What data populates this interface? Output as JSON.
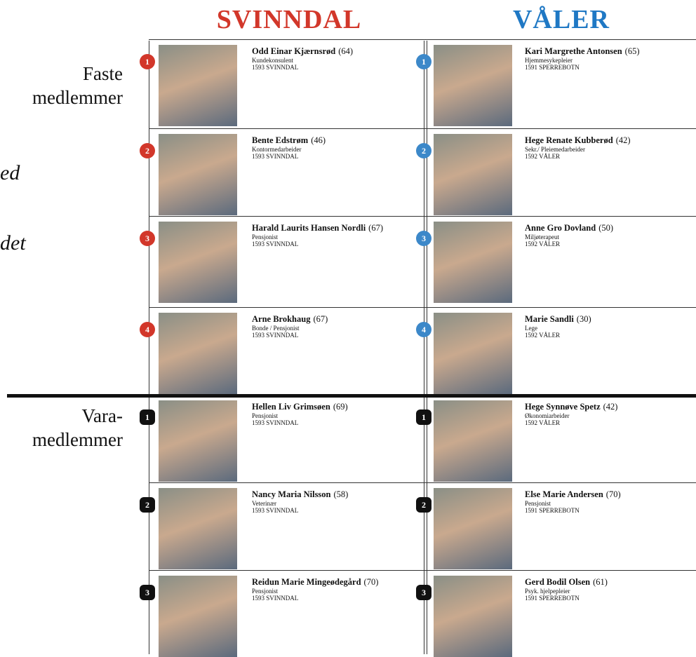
{
  "header": {
    "left": "SVINNDAL",
    "right": "VÅLER"
  },
  "side_labels": {
    "faste": [
      "Faste",
      "medlemmer"
    ],
    "vara": [
      "Vara-",
      "medlemmer"
    ],
    "cut": [
      "ed",
      "det"
    ]
  },
  "sections": [
    {
      "rows": [
        {
          "left": {
            "number": 1,
            "name": "Odd Einar Kjærnsrød",
            "age": "(64)",
            "role": "Kundekonsulent",
            "address": "1593 SVINNDAL"
          },
          "right": {
            "number": 1,
            "name": "Kari Margrethe Antonsen",
            "age": "(65)",
            "role": "Hjemmesykepleier",
            "address": "1591 SPERREBOTN"
          }
        },
        {
          "left": {
            "number": 2,
            "name": "Bente Edstrøm",
            "age": "(46)",
            "role": "Kontormedarbeider",
            "address": "1593 SVINNDAL"
          },
          "right": {
            "number": 2,
            "name": "Hege Renate Kubberød",
            "age": "(42)",
            "role": "Sekr./ Pleiemedarbeider",
            "address": "1592 VÅLER"
          }
        },
        {
          "left": {
            "number": 3,
            "name": "Harald Laurits Hansen Nordli",
            "age": "(67)",
            "role": "Pensjonist",
            "address": "1593 SVINNDAL"
          },
          "right": {
            "number": 3,
            "name": "Anne Gro Dovland",
            "age": "(50)",
            "role": "Miljøterapeut",
            "address": "1592 VÅLER"
          }
        },
        {
          "left": {
            "number": 4,
            "name": "Arne Brokhaug",
            "age": "(67)",
            "role": "Bonde / Pensjonist",
            "address": "1593 SVINNDAL"
          },
          "right": {
            "number": 4,
            "name": "Marie Sandli",
            "age": "(30)",
            "role": "Lege",
            "address": "1592 VÅLER"
          }
        }
      ]
    },
    {
      "rows": [
        {
          "left": {
            "number": 1,
            "name": "Hellen Liv Grimsøen",
            "age": "(69)",
            "role": "Pensjonist",
            "address": "1593 SVINNDAL"
          },
          "right": {
            "number": 1,
            "name": "Hege Synnøve Spetz",
            "age": "(42)",
            "role": "Økonomiarbeider",
            "address": "1592 VÅLER"
          }
        },
        {
          "left": {
            "number": 2,
            "name": "Nancy Maria Nilsson",
            "age": "(58)",
            "role": "Veterinær",
            "address": "1593 SVINNDAL"
          },
          "right": {
            "number": 2,
            "name": "Else Marie Andersen",
            "age": "(70)",
            "role": "Pensjonist",
            "address": "1591 SPERREBOTN"
          }
        },
        {
          "left": {
            "number": 3,
            "name": "Reidun Marie Mingeødegård",
            "age": "(70)",
            "role": "Pensjonist",
            "address": "1593 SVINNDAL"
          },
          "right": {
            "number": 3,
            "name": "Gerd Bodil Olsen",
            "age": "(61)",
            "role": "Psyk. hjelpepleier",
            "address": "1591 SPERREBOTN"
          }
        }
      ]
    }
  ]
}
